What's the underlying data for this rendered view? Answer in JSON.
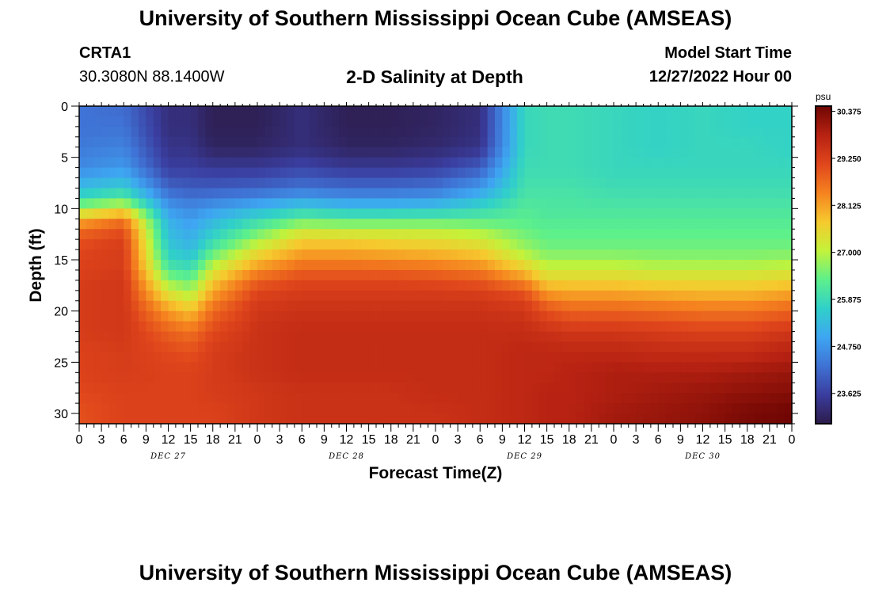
{
  "header": {
    "title": "University of Southern Mississippi Ocean Cube (AMSEAS)",
    "station": "CRTA1",
    "coords": "30.3080N  88.1400W",
    "plot_title": "2-D Salinity at Depth",
    "model_start_label": "Model Start Time",
    "model_start_value": "12/27/2022 Hour 00"
  },
  "footer": {
    "title": "University of Southern Mississippi Ocean Cube (AMSEAS)"
  },
  "chart_data": {
    "type": "heatmap",
    "title": "2-D Salinity at Depth",
    "xlabel": "Forecast Time(Z)",
    "ylabel": "Depth (ft)",
    "x_tick_labels": [
      "0",
      "3",
      "6",
      "9",
      "12",
      "15",
      "18",
      "21",
      "0",
      "3",
      "6",
      "9",
      "12",
      "15",
      "18",
      "21",
      "0",
      "3",
      "6",
      "9",
      "12",
      "15",
      "18",
      "21",
      "0",
      "3",
      "6",
      "9",
      "12",
      "15",
      "18",
      "21",
      "0"
    ],
    "x_range_hours": [
      0,
      96
    ],
    "x_tick_step_hours": 3,
    "day_labels": [
      {
        "label": "DEC 27",
        "hour": 12
      },
      {
        "label": "DEC 28",
        "hour": 36
      },
      {
        "label": "DEC 29",
        "hour": 60
      },
      {
        "label": "DEC 30",
        "hour": 84
      }
    ],
    "y_range_ft": [
      0,
      31
    ],
    "y_inverted": true,
    "y_ticks": [
      0,
      5,
      10,
      15,
      20,
      25,
      30
    ],
    "y_tick_labels": [
      "0",
      "5",
      "10",
      "15",
      "20",
      "25",
      "30"
    ],
    "colorbar": {
      "unit": "psu",
      "min": 22.9,
      "max": 30.5,
      "ticks": [
        30.375,
        29.25,
        28.125,
        27.0,
        25.875,
        24.75,
        23.625
      ],
      "tick_labels": [
        "30.375",
        "29.250",
        "28.125",
        "27.000",
        "25.875",
        "24.750",
        "23.625"
      ],
      "colors": [
        "#2d1b4a",
        "#3a3d9e",
        "#3f72d4",
        "#3ea6f2",
        "#30d0c9",
        "#5ef08a",
        "#c4f23a",
        "#f6c92e",
        "#f5821f",
        "#e0461c",
        "#b72212",
        "#6f0603"
      ]
    },
    "depths_ft": [
      0,
      2,
      4,
      6,
      8,
      9,
      10,
      11,
      12,
      13,
      14,
      15,
      16,
      17,
      18,
      19,
      20,
      22,
      24,
      26,
      28,
      30,
      31
    ],
    "times_hr": [
      0,
      6,
      12,
      15,
      18,
      24,
      30,
      36,
      42,
      48,
      54,
      60,
      63,
      66,
      72,
      78,
      84,
      90,
      96
    ],
    "salinity_psu": [
      [
        24.3,
        24.2,
        23.3,
        23.3,
        23.0,
        23.0,
        23.3,
        23.0,
        23.0,
        23.1,
        23.3,
        25.8,
        25.9,
        25.9,
        25.8,
        25.7,
        25.8,
        25.7,
        25.7
      ],
      [
        24.3,
        24.3,
        23.3,
        23.3,
        23.0,
        23.0,
        23.3,
        23.0,
        23.0,
        23.1,
        23.3,
        25.8,
        25.9,
        25.9,
        25.8,
        25.7,
        25.8,
        25.7,
        25.7
      ],
      [
        24.4,
        24.5,
        23.4,
        23.4,
        23.1,
        23.1,
        23.3,
        23.1,
        23.1,
        23.2,
        23.4,
        25.8,
        25.9,
        25.9,
        25.8,
        25.7,
        25.8,
        25.8,
        25.7
      ],
      [
        24.6,
        24.8,
        23.6,
        23.6,
        23.5,
        23.5,
        23.7,
        23.5,
        23.5,
        23.6,
        24.0,
        25.9,
        25.9,
        25.9,
        25.8,
        25.8,
        25.8,
        25.8,
        25.8
      ],
      [
        25.3,
        25.6,
        24.1,
        24.0,
        24.0,
        24.1,
        24.3,
        24.2,
        24.2,
        24.3,
        24.8,
        26.0,
        26.0,
        26.0,
        25.9,
        25.9,
        25.9,
        25.9,
        25.9
      ],
      [
        25.9,
        26.3,
        24.5,
        24.3,
        24.4,
        24.6,
        24.9,
        24.7,
        24.7,
        24.8,
        25.3,
        26.1,
        26.1,
        26.1,
        26.0,
        26.0,
        26.0,
        26.0,
        26.0
      ],
      [
        26.8,
        27.3,
        24.8,
        24.6,
        24.8,
        25.2,
        25.6,
        25.4,
        25.4,
        25.5,
        25.8,
        26.2,
        26.1,
        26.1,
        26.1,
        26.1,
        26.1,
        26.1,
        26.1
      ],
      [
        27.9,
        28.5,
        25.1,
        24.8,
        25.2,
        25.8,
        26.3,
        26.2,
        26.2,
        26.2,
        26.2,
        26.3,
        26.2,
        26.2,
        26.2,
        26.2,
        26.2,
        26.2,
        26.2
      ],
      [
        28.6,
        29.0,
        25.3,
        25.0,
        25.5,
        26.3,
        27.1,
        27.0,
        27.0,
        27.0,
        26.8,
        26.4,
        26.3,
        26.3,
        26.3,
        26.3,
        26.3,
        26.3,
        26.3
      ],
      [
        29.0,
        29.2,
        25.4,
        25.1,
        25.8,
        26.8,
        27.6,
        27.6,
        27.5,
        27.4,
        27.2,
        26.6,
        26.4,
        26.4,
        26.4,
        26.4,
        26.4,
        26.4,
        26.4
      ],
      [
        29.1,
        29.3,
        25.6,
        25.3,
        26.2,
        27.3,
        28.0,
        28.0,
        27.9,
        27.8,
        27.6,
        26.8,
        26.5,
        26.5,
        26.5,
        26.5,
        26.5,
        26.5,
        26.5
      ],
      [
        29.2,
        29.3,
        25.8,
        25.6,
        26.7,
        27.8,
        28.4,
        28.4,
        28.3,
        28.2,
        28.0,
        27.2,
        26.8,
        26.8,
        26.8,
        26.7,
        26.7,
        26.7,
        26.8
      ],
      [
        29.2,
        29.3,
        26.2,
        26.0,
        27.2,
        28.3,
        28.8,
        28.8,
        28.8,
        28.7,
        28.5,
        27.8,
        27.2,
        27.2,
        27.2,
        27.1,
        27.1,
        27.1,
        27.2
      ],
      [
        29.3,
        29.4,
        26.7,
        26.4,
        27.7,
        28.8,
        29.1,
        29.1,
        29.1,
        29.0,
        28.9,
        28.3,
        27.6,
        27.6,
        27.6,
        27.5,
        27.5,
        27.5,
        27.6
      ],
      [
        29.3,
        29.4,
        27.2,
        26.8,
        28.0,
        29.1,
        29.3,
        29.3,
        29.3,
        29.3,
        29.2,
        28.9,
        28.1,
        28.0,
        28.0,
        27.9,
        27.8,
        27.8,
        28.0
      ],
      [
        29.3,
        29.4,
        27.7,
        27.3,
        28.4,
        29.3,
        29.4,
        29.4,
        29.4,
        29.4,
        29.4,
        29.2,
        28.6,
        28.4,
        28.4,
        28.3,
        28.2,
        28.2,
        28.4
      ],
      [
        29.3,
        29.4,
        28.2,
        27.8,
        28.7,
        29.4,
        29.5,
        29.5,
        29.5,
        29.5,
        29.5,
        29.4,
        29.0,
        28.8,
        28.8,
        28.7,
        28.6,
        28.6,
        28.8
      ],
      [
        29.3,
        29.4,
        28.8,
        28.6,
        29.1,
        29.5,
        29.6,
        29.6,
        29.6,
        29.6,
        29.6,
        29.6,
        29.5,
        29.4,
        29.4,
        29.3,
        29.2,
        29.2,
        29.4
      ],
      [
        29.2,
        29.3,
        29.1,
        29.0,
        29.3,
        29.5,
        29.6,
        29.6,
        29.6,
        29.6,
        29.6,
        29.7,
        29.7,
        29.7,
        29.7,
        29.6,
        29.6,
        29.6,
        29.8
      ],
      [
        29.2,
        29.3,
        29.2,
        29.2,
        29.3,
        29.5,
        29.6,
        29.6,
        29.6,
        29.6,
        29.6,
        29.7,
        29.7,
        29.8,
        29.9,
        29.9,
        29.9,
        30.0,
        30.1
      ],
      [
        29.1,
        29.2,
        29.2,
        29.2,
        29.3,
        29.4,
        29.5,
        29.5,
        29.5,
        29.6,
        29.6,
        29.7,
        29.8,
        29.8,
        29.9,
        30.0,
        30.1,
        30.2,
        30.3
      ],
      [
        29.0,
        29.2,
        29.2,
        29.2,
        29.2,
        29.4,
        29.5,
        29.5,
        29.5,
        29.5,
        29.6,
        29.7,
        29.8,
        29.8,
        30.0,
        30.1,
        30.2,
        30.4,
        30.5
      ],
      [
        29.0,
        29.2,
        29.2,
        29.2,
        29.2,
        29.4,
        29.5,
        29.5,
        29.5,
        29.5,
        29.6,
        29.7,
        29.8,
        29.8,
        30.0,
        30.1,
        30.2,
        30.4,
        30.5
      ]
    ]
  }
}
